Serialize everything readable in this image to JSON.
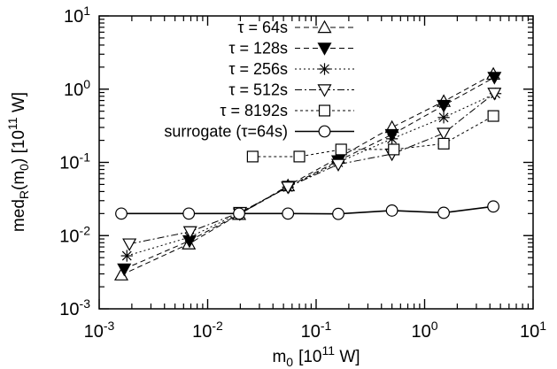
{
  "chart_data": {
    "type": "scatter",
    "xscale": "log",
    "yscale": "log",
    "xlim": [
      0.001,
      10
    ],
    "ylim": [
      0.001,
      10
    ],
    "xlabel_main": "m",
    "xlabel_sub": "0",
    "xlabel_units_prefix": "[10",
    "xlabel_units_sup": "11",
    "xlabel_units_suffix": " W]",
    "ylabel_main": "med",
    "ylabel_sub1": "R",
    "ylabel_paren_open": "(m",
    "ylabel_sub2": "0",
    "ylabel_paren_close": ") [10",
    "ylabel_sup": "11",
    "ylabel_suffix": " W]",
    "x_ticks": [
      {
        "base": "10",
        "exp": "-3",
        "value": 0.001
      },
      {
        "base": "10",
        "exp": "-2",
        "value": 0.01
      },
      {
        "base": "10",
        "exp": "-1",
        "value": 0.1
      },
      {
        "base": "10",
        "exp": "0",
        "value": 1
      },
      {
        "base": "10",
        "exp": "1",
        "value": 10
      }
    ],
    "y_ticks": [
      {
        "base": "10",
        "exp": "-3",
        "value": 0.001
      },
      {
        "base": "10",
        "exp": "-2",
        "value": 0.01
      },
      {
        "base": "10",
        "exp": "-1",
        "value": 0.1
      },
      {
        "base": "10",
        "exp": "0",
        "value": 1
      },
      {
        "base": "10",
        "exp": "1",
        "value": 10
      }
    ],
    "legend_position": "top-left",
    "series": [
      {
        "name": "τ =    64s",
        "marker": "triangle-up-open",
        "line_style": "dashed",
        "x": [
          0.0016,
          0.0067,
          0.0195,
          0.055,
          0.16,
          0.5,
          1.5,
          4.3
        ],
        "y": [
          0.0029,
          0.0077,
          0.0195,
          0.048,
          0.115,
          0.3,
          0.68,
          1.6
        ]
      },
      {
        "name": "τ =  128s",
        "marker": "triangle-down-filled",
        "line_style": "dashed",
        "x": [
          0.0017,
          0.0068,
          0.0198,
          0.056,
          0.16,
          0.5,
          1.5,
          4.4
        ],
        "y": [
          0.0035,
          0.0085,
          0.0198,
          0.047,
          0.105,
          0.24,
          0.6,
          1.45
        ]
      },
      {
        "name": "τ =  256s",
        "marker": "star",
        "line_style": "dotted",
        "x": [
          0.0018,
          0.0068,
          0.0198,
          0.055,
          0.16,
          0.5,
          1.5,
          4.5
        ],
        "y": [
          0.0053,
          0.0095,
          0.0203,
          0.046,
          0.1,
          0.21,
          0.41,
          0.87
        ]
      },
      {
        "name": "τ =  512s",
        "marker": "triangle-down-open",
        "line_style": "dashdot",
        "x": [
          0.0019,
          0.0069,
          0.0199,
          0.055,
          0.16,
          0.5,
          1.5,
          4.4
        ],
        "y": [
          0.0077,
          0.0113,
          0.0207,
          0.046,
          0.094,
          0.13,
          0.25,
          0.88
        ]
      },
      {
        "name": "τ = 8192s",
        "marker": "square-open",
        "line_style": "dashed-fine",
        "x": [
          0.026,
          0.07,
          0.17,
          0.52,
          1.5,
          4.3
        ],
        "y": [
          0.12,
          0.12,
          0.15,
          0.15,
          0.18,
          0.43
        ]
      },
      {
        "name": "surrogate (τ=64s)",
        "marker": "circle-open",
        "line_style": "solid",
        "x": [
          0.0016,
          0.0067,
          0.0195,
          0.055,
          0.16,
          0.5,
          1.5,
          4.3
        ],
        "y": [
          0.02,
          0.02,
          0.02,
          0.02,
          0.0198,
          0.022,
          0.0205,
          0.025
        ]
      }
    ]
  }
}
